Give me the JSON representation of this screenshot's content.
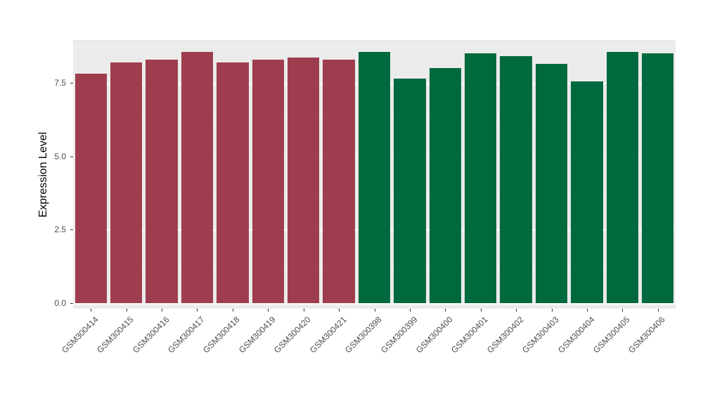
{
  "chart_data": {
    "type": "bar",
    "title": "",
    "xlabel": "",
    "ylabel": "Expression Level",
    "categories": [
      "GSM300414",
      "GSM300415",
      "GSM300416",
      "GSM300417",
      "GSM300418",
      "GSM300419",
      "GSM300420",
      "GSM300421",
      "GSM300398",
      "GSM300399",
      "GSM300400",
      "GSM300401",
      "GSM300402",
      "GSM300403",
      "GSM300404",
      "GSM300405",
      "GSM300406"
    ],
    "values": [
      7.8,
      8.2,
      8.3,
      8.55,
      8.2,
      8.3,
      8.35,
      8.3,
      8.55,
      7.65,
      8.0,
      8.5,
      8.4,
      8.15,
      7.55,
      8.55,
      8.5
    ],
    "groups": [
      "group1",
      "group1",
      "group1",
      "group1",
      "group1",
      "group1",
      "group1",
      "group1",
      "group2",
      "group2",
      "group2",
      "group2",
      "group2",
      "group2",
      "group2",
      "group2",
      "group2"
    ],
    "group_colors": {
      "group1": "#9e3d4e",
      "group2": "#00693e"
    },
    "yticks": [
      0,
      2.5,
      5,
      7.5
    ],
    "ytick_labels": [
      "0.0",
      "2.5",
      "5.0",
      "7.5"
    ],
    "ylim": [
      0,
      8.96
    ],
    "grid": true,
    "legend_position": "none",
    "panel_bg": "#ebebeb",
    "grid_color": "#ffffff",
    "bar_width_fraction": 0.9
  }
}
